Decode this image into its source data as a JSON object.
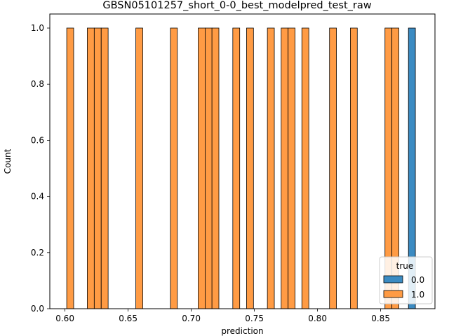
{
  "chart_data": {
    "type": "bar",
    "title": "GBSN05101257_short_0-0_best_modelpred_test_raw",
    "xlabel": "prediction",
    "ylabel": "Count",
    "xlim": [
      0.588,
      0.893
    ],
    "ylim": [
      0,
      1.05
    ],
    "bin_width": 0.00549,
    "xticks": [
      0.6,
      0.65,
      0.7,
      0.75,
      0.8,
      0.85
    ],
    "xtick_labels": [
      "0.60",
      "0.65",
      "0.70",
      "0.75",
      "0.80",
      "0.85"
    ],
    "yticks": [
      0.0,
      0.2,
      0.4,
      0.6,
      0.8,
      1.0
    ],
    "ytick_labels": [
      "0.0",
      "0.2",
      "0.4",
      "0.6",
      "0.8",
      "1.0"
    ],
    "legend": {
      "title": "true",
      "placement": "lower-right"
    },
    "series": [
      {
        "name": "0.0",
        "color": "#3b8bc2",
        "bins": [
          {
            "x0": 0.872,
            "count": 1
          }
        ]
      },
      {
        "name": "1.0",
        "color": "#ff9b44",
        "bins": [
          {
            "x0": 0.6014,
            "count": 1
          },
          {
            "x0": 0.6177,
            "count": 1
          },
          {
            "x0": 0.6232,
            "count": 1
          },
          {
            "x0": 0.6287,
            "count": 1
          },
          {
            "x0": 0.6561,
            "count": 1
          },
          {
            "x0": 0.6835,
            "count": 1
          },
          {
            "x0": 0.7055,
            "count": 1
          },
          {
            "x0": 0.711,
            "count": 1
          },
          {
            "x0": 0.7164,
            "count": 1
          },
          {
            "x0": 0.7329,
            "count": 1
          },
          {
            "x0": 0.7438,
            "count": 1
          },
          {
            "x0": 0.7603,
            "count": 1
          },
          {
            "x0": 0.7712,
            "count": 1
          },
          {
            "x0": 0.7767,
            "count": 1
          },
          {
            "x0": 0.7876,
            "count": 1
          },
          {
            "x0": 0.8095,
            "count": 1
          },
          {
            "x0": 0.826,
            "count": 1
          },
          {
            "x0": 0.8534,
            "count": 1
          },
          {
            "x0": 0.8589,
            "count": 1
          }
        ]
      }
    ]
  }
}
